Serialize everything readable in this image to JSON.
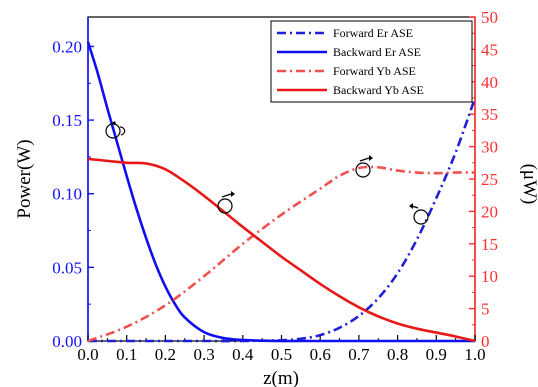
{
  "chart_data": {
    "type": "line",
    "xlabel": "z(m)",
    "ylabel_left": "Power(W)",
    "ylabel_right": "(μW)",
    "xlim": [
      0,
      1.0
    ],
    "ylim_left": [
      0,
      0.22
    ],
    "ylim_right": [
      0,
      50
    ],
    "x_ticks": [
      "0.0",
      "0.1",
      "0.2",
      "0.3",
      "0.4",
      "0.5",
      "0.6",
      "0.7",
      "0.8",
      "0.9",
      "1.0"
    ],
    "y_left_ticks": [
      "0.00",
      "0.05",
      "0.10",
      "0.15",
      "0.20"
    ],
    "y_right_ticks": [
      "0",
      "5",
      "10",
      "15",
      "20",
      "25",
      "30",
      "35",
      "40",
      "45",
      "50"
    ],
    "legend_position": "top-right",
    "grid": false,
    "colors": {
      "left_axis": "#1010ff",
      "right_axis": "#ff3030",
      "frame": "#000000"
    },
    "series": [
      {
        "name": "Forward Er ASE",
        "axis": "left",
        "style": "dash-dot",
        "color": "#1f1fd6",
        "x": [
          0.0,
          0.1,
          0.2,
          0.3,
          0.4,
          0.5,
          0.55,
          0.6,
          0.65,
          0.7,
          0.75,
          0.8,
          0.85,
          0.9,
          0.95,
          1.0
        ],
        "y": [
          0.0,
          0.0,
          0.0,
          0.0,
          0.0,
          0.0005,
          0.0015,
          0.004,
          0.009,
          0.017,
          0.029,
          0.046,
          0.069,
          0.097,
          0.128,
          0.165
        ]
      },
      {
        "name": "Backward Er ASE",
        "axis": "left",
        "style": "solid",
        "color": "#1010ee",
        "x": [
          0.0,
          0.025,
          0.05,
          0.075,
          0.1,
          0.125,
          0.15,
          0.175,
          0.2,
          0.225,
          0.25,
          0.3,
          0.35,
          0.4,
          0.45,
          0.5,
          0.55,
          1.0
        ],
        "y": [
          0.203,
          0.182,
          0.158,
          0.135,
          0.112,
          0.09,
          0.07,
          0.052,
          0.037,
          0.025,
          0.016,
          0.006,
          0.002,
          0.0007,
          0.0002,
          0.0,
          0.0,
          0.0
        ]
      },
      {
        "name": "Forward Yb ASE",
        "axis": "right",
        "style": "dash-dot",
        "color": "#f05050",
        "x": [
          0.0,
          0.1,
          0.2,
          0.3,
          0.4,
          0.5,
          0.6,
          0.65,
          0.7,
          0.75,
          0.8,
          0.85,
          0.9,
          0.95,
          1.0
        ],
        "y": [
          0.0,
          2.2,
          5.5,
          10.0,
          15.0,
          19.5,
          23.5,
          25.5,
          26.7,
          26.8,
          26.3,
          26.0,
          25.9,
          26.0,
          26.0
        ]
      },
      {
        "name": "Backward Yb ASE",
        "axis": "right",
        "style": "solid",
        "color": "#e81818",
        "x": [
          0.0,
          0.05,
          0.1,
          0.15,
          0.2,
          0.25,
          0.3,
          0.35,
          0.4,
          0.45,
          0.5,
          0.55,
          0.6,
          0.65,
          0.7,
          0.75,
          0.8,
          0.85,
          0.9,
          0.95,
          1.0
        ],
        "y": [
          28.1,
          27.8,
          27.5,
          27.4,
          26.5,
          24.6,
          22.4,
          20.0,
          17.6,
          15.3,
          13.0,
          10.9,
          8.8,
          6.9,
          5.2,
          3.8,
          2.7,
          1.9,
          1.3,
          0.7,
          0.0
        ]
      }
    ]
  }
}
